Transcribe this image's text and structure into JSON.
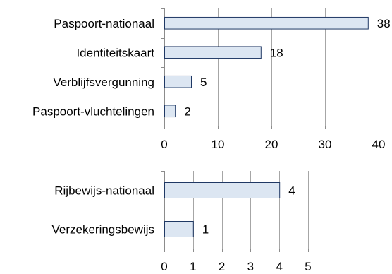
{
  "chart_data": [
    {
      "type": "bar",
      "orientation": "horizontal",
      "categories": [
        "Paspoort-nationaal",
        "Identiteitskaart",
        "Verblijfsvergunning",
        "Paspoort-vluchtelingen"
      ],
      "values": [
        38,
        18,
        5,
        2
      ],
      "data_labels": [
        "38",
        "18",
        "5",
        "2"
      ],
      "xlim": [
        0,
        40
      ],
      "x_ticks": [
        "0",
        "10",
        "20",
        "30",
        "40"
      ],
      "grid": true,
      "bar_fill": "#dce6f2",
      "bar_stroke": "#1f3864"
    },
    {
      "type": "bar",
      "orientation": "horizontal",
      "categories": [
        "Rijbewijs-nationaal",
        "Verzekeringsbewijs"
      ],
      "values": [
        4,
        1
      ],
      "data_labels": [
        "4",
        "1"
      ],
      "xlim": [
        0,
        5
      ],
      "x_ticks": [
        "0",
        "1",
        "2",
        "3",
        "4",
        "5"
      ],
      "grid": true,
      "bar_fill": "#dce6f2",
      "bar_stroke": "#1f3864"
    }
  ]
}
